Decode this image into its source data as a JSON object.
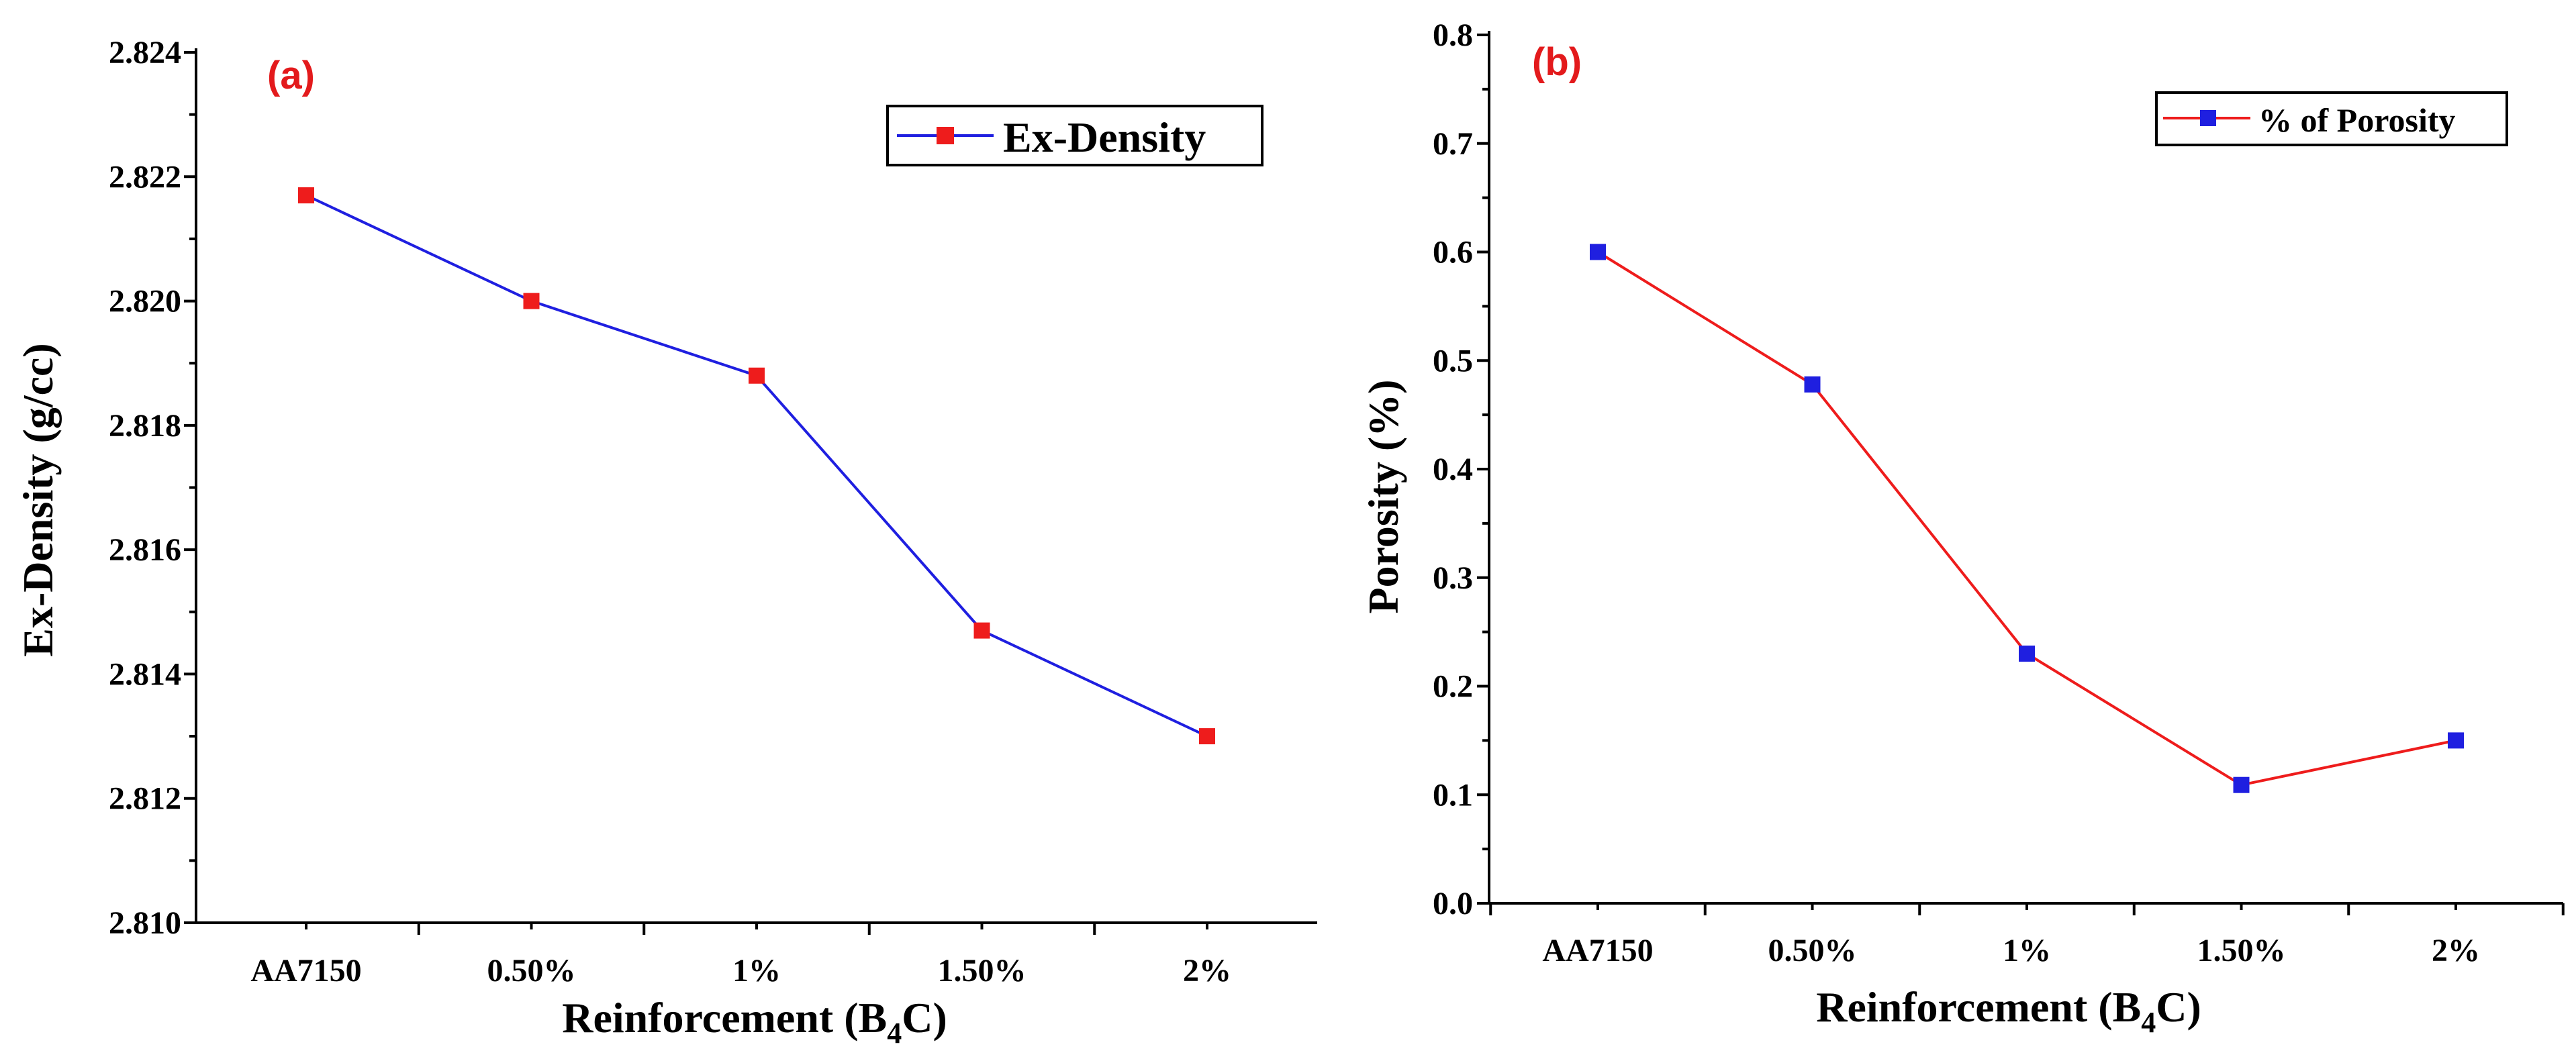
{
  "colors": {
    "axis": "#000000",
    "panel_label": "#e31a1c",
    "blue": "#1f1fe0",
    "red": "#ee1c1c"
  },
  "chart_data": [
    {
      "type": "line",
      "panel_label": "(a)",
      "title": "",
      "xlabel": {
        "main": "Reinforcement (B",
        "sub": "4",
        "tail": "C)"
      },
      "ylabel": "Ex-Density (g/cc)",
      "categories": [
        "AA7150",
        "0.50%",
        "1%",
        "1.50%",
        "2%"
      ],
      "ylim": [
        2.81,
        2.824
      ],
      "yticks": [
        "2.810",
        "2.812",
        "2.814",
        "2.816",
        "2.818",
        "2.820",
        "2.822",
        "2.824"
      ],
      "legend_position": "top-right",
      "series": [
        {
          "name": "Ex-Density",
          "values": [
            2.8217,
            2.82,
            2.8188,
            2.8147,
            2.813
          ],
          "line_color": "#1f1fe0",
          "marker_color": "#ee1c1c",
          "marker": "square"
        }
      ]
    },
    {
      "type": "line",
      "panel_label": "(b)",
      "title": "",
      "xlabel": {
        "main": "Reinforcement (B",
        "sub": "4",
        "tail": "C)"
      },
      "ylabel": "Porosity (%)",
      "categories": [
        "AA7150",
        "0.50%",
        "1%",
        "1.50%",
        "2%"
      ],
      "ylim": [
        0,
        0.8
      ],
      "yticks": [
        "0.0",
        "0.1",
        "0.2",
        "0.3",
        "0.4",
        "0.5",
        "0.6",
        "0.7",
        "0.8"
      ],
      "legend_position": "top-right",
      "series": [
        {
          "name": "% of Porosity",
          "values": [
            0.6,
            0.478,
            0.23,
            0.109,
            0.15
          ],
          "line_color": "#ee1c1c",
          "marker_color": "#1f1fe0",
          "marker": "square"
        }
      ]
    }
  ]
}
